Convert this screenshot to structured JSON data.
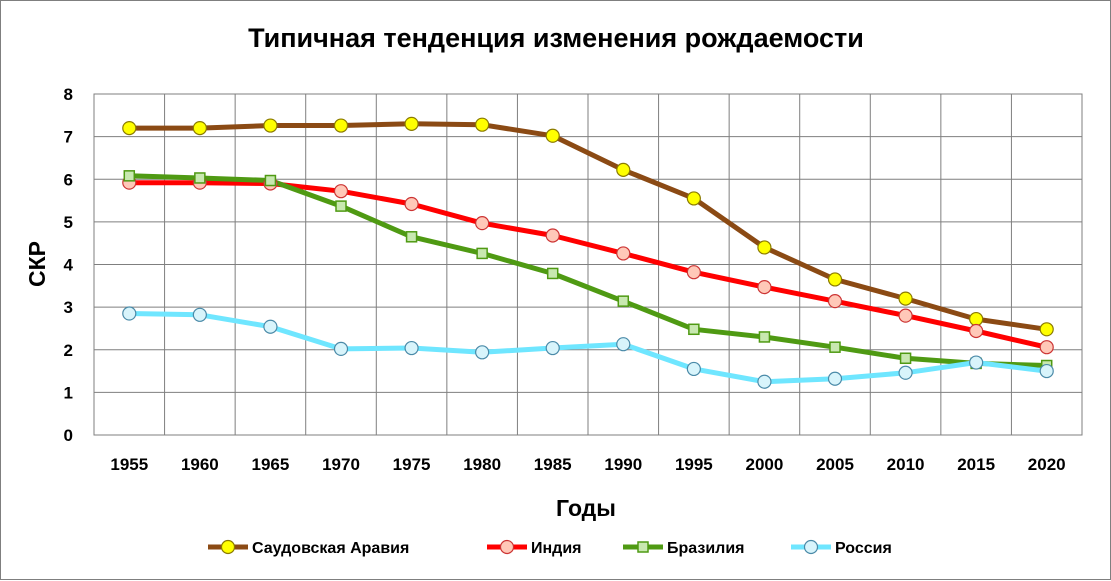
{
  "chart_data": {
    "type": "line",
    "title": "Типичная тенденция изменения рождаемости",
    "xlabel": "Годы",
    "ylabel": "СКР",
    "ylim": [
      0,
      8
    ],
    "yticks": [
      "0",
      "1",
      "2",
      "3",
      "4",
      "5",
      "6",
      "7",
      "8"
    ],
    "categories": [
      "1955",
      "1960",
      "1965",
      "1970",
      "1975",
      "1980",
      "1985",
      "1990",
      "1995",
      "2000",
      "2005",
      "2010",
      "2015",
      "2020"
    ],
    "grid": true,
    "legend_position": "bottom",
    "series": [
      {
        "name": "Саудовская Аравия",
        "line_color": "#8b4a14",
        "marker": "circle",
        "marker_fill": "#ffff00",
        "marker_stroke": "#8a7a00",
        "values": [
          7.2,
          7.2,
          7.26,
          7.26,
          7.3,
          7.28,
          7.02,
          6.22,
          5.55,
          4.4,
          3.65,
          3.2,
          2.72,
          2.48
        ]
      },
      {
        "name": "Индия",
        "line_color": "#ff0000",
        "marker": "circle",
        "marker_fill": "#ffc8b8",
        "marker_stroke": "#cc3333",
        "values": [
          5.92,
          5.92,
          5.9,
          5.72,
          5.42,
          4.97,
          4.68,
          4.26,
          3.82,
          3.47,
          3.14,
          2.8,
          2.44,
          2.06
        ]
      },
      {
        "name": "Бразилия",
        "line_color": "#4f9a13",
        "marker": "square",
        "marker_fill": "#c8e8b0",
        "marker_stroke": "#4f9a13",
        "values": [
          6.08,
          6.03,
          5.97,
          5.37,
          4.65,
          4.26,
          3.79,
          3.14,
          2.48,
          2.3,
          2.06,
          1.8,
          1.68,
          1.63
        ]
      },
      {
        "name": "Россия",
        "line_color": "#6fe6ff",
        "marker": "circle",
        "marker_fill": "#d8f4fb",
        "marker_stroke": "#4a8aa8",
        "values": [
          2.85,
          2.82,
          2.54,
          2.02,
          2.04,
          1.94,
          2.04,
          2.13,
          1.55,
          1.25,
          1.32,
          1.46,
          1.7,
          1.5
        ]
      }
    ]
  }
}
